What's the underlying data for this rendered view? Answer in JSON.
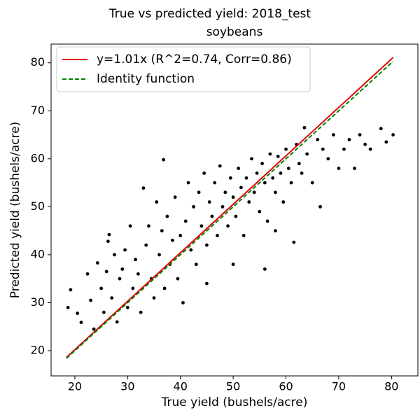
{
  "chart_data": {
    "type": "scatter",
    "title": "True vs predicted yield: 2018_test",
    "subtitle": "soybeans",
    "xlabel": "True yield (bushels/acre)",
    "ylabel": "Predicted yield (bushels/acre)",
    "xlim": [
      15.5,
      85.0
    ],
    "ylim": [
      14.75,
      83.9
    ],
    "xticks": [
      20,
      30,
      40,
      50,
      60,
      70,
      80
    ],
    "yticks": [
      20,
      30,
      40,
      50,
      60,
      70,
      80
    ],
    "legend": "upper left",
    "series": [
      {
        "mode": "markers",
        "color": "#000000",
        "x": [
          18.7,
          19.2,
          20.5,
          21.2,
          22.4,
          23,
          23.6,
          24.3,
          25,
          25.5,
          26,
          26.3,
          26.5,
          27,
          27.5,
          28,
          28.5,
          29,
          29.5,
          30,
          30.5,
          31,
          31.5,
          32,
          32.5,
          33,
          33.5,
          34,
          34.5,
          35,
          35.5,
          36,
          36.5,
          37,
          37.5,
          38,
          38.5,
          39,
          39.5,
          40,
          40.5,
          41,
          41.5,
          42,
          42.5,
          43,
          43.5,
          44,
          44.5,
          45,
          45.5,
          46,
          46.5,
          47,
          47.5,
          48,
          48.5,
          49,
          49.5,
          50,
          50.5,
          51,
          51.5,
          52,
          52.5,
          53,
          53.5,
          54,
          54.5,
          55,
          55.5,
          56,
          56.5,
          57,
          57.5,
          58,
          58.5,
          59,
          59.5,
          60,
          60.5,
          61,
          61.5,
          62,
          62.5,
          63,
          63.5,
          64,
          65,
          66,
          66.5,
          67,
          68,
          69,
          70,
          71,
          72,
          73,
          74,
          75,
          76,
          78,
          79,
          80.3,
          36.8,
          56,
          45,
          50,
          58
        ],
        "values": [
          29,
          32.7,
          27.8,
          25.9,
          36,
          30.5,
          24.5,
          38.3,
          33,
          28,
          36.5,
          42.8,
          44.2,
          31,
          40,
          26,
          35,
          37,
          41,
          29,
          46,
          33,
          39,
          36,
          28,
          53.9,
          42,
          46,
          35,
          31,
          51,
          40,
          45,
          33,
          48,
          38,
          43,
          52,
          35,
          44,
          30,
          47,
          55,
          41,
          50,
          38,
          53,
          46,
          57,
          42,
          51,
          48,
          55,
          44,
          58.5,
          50,
          53,
          46,
          56,
          52,
          48,
          58,
          54,
          44,
          56,
          51,
          60,
          53,
          57,
          49,
          59,
          55,
          47,
          61,
          56,
          53,
          60.5,
          57,
          51,
          62,
          58,
          55,
          42.6,
          63,
          59,
          57,
          66.5,
          61,
          55,
          64,
          50,
          62,
          60,
          65,
          58,
          62,
          64,
          58,
          65,
          63,
          62,
          66.3,
          63.5,
          65,
          59.8,
          37,
          34,
          38,
          45
        ]
      },
      {
        "mode": "lines",
        "name": "y=1.01x (R^2=0.74, Corr=0.86)",
        "color": "#e00000",
        "linestyle": "solid",
        "x": [
          18.4,
          80.3
        ],
        "values": [
          18.6,
          81.1
        ]
      },
      {
        "mode": "lines",
        "name": "Identity function",
        "color": "#008000",
        "linestyle": "dashed",
        "x": [
          18.4,
          80.3
        ],
        "values": [
          18.4,
          80.3
        ]
      }
    ]
  }
}
